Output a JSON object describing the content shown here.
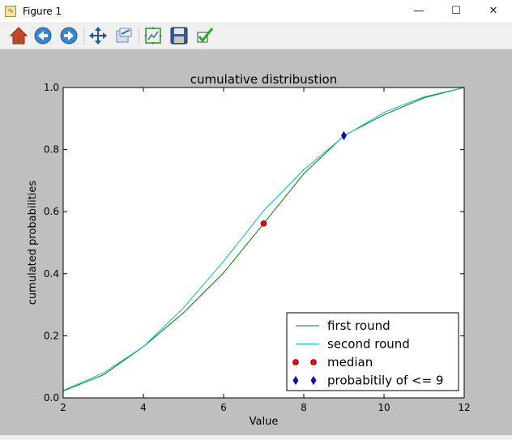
{
  "window": {
    "title": "Figure 1",
    "minimize_glyph": "—",
    "maximize_glyph": "☐",
    "close_glyph": "✕"
  },
  "toolbar": {
    "items": [
      "home-icon",
      "back-arrow-icon",
      "forward-arrow-icon",
      "pan-icon",
      "zoom-icon",
      "subplots-config-icon",
      "save-icon",
      "edit-axes-icon"
    ]
  },
  "colors": {
    "figure_bg": "#bfbfbf",
    "first_round": "#008000",
    "second_round": "#00bfbf",
    "median": "#ff0000",
    "prob9": "#0000ff"
  },
  "chart_data": {
    "type": "line",
    "title": "cumulative distribustion",
    "xlabel": "Value",
    "ylabel": "cumulated probabilities",
    "xlim": [
      2,
      12
    ],
    "ylim": [
      0.0,
      1.0
    ],
    "xticks": [
      "2",
      "4",
      "6",
      "8",
      "10",
      "12"
    ],
    "yticks": [
      "0.0",
      "0.2",
      "0.4",
      "0.6",
      "0.8",
      "1.0"
    ],
    "grid": false,
    "legend_position": "lower-right",
    "series": [
      {
        "name": "first round",
        "kind": "line",
        "color": "#008000",
        "x": [
          2,
          3,
          4,
          5,
          6,
          7,
          8,
          9,
          10,
          11,
          12
        ],
        "y": [
          0.022,
          0.074,
          0.165,
          0.274,
          0.403,
          0.562,
          0.722,
          0.845,
          0.912,
          0.967,
          1.0
        ]
      },
      {
        "name": "second round",
        "kind": "line",
        "color": "#00bfbf",
        "x": [
          2,
          3,
          4,
          5,
          6,
          7,
          8,
          9,
          10,
          11,
          12
        ],
        "y": [
          0.024,
          0.08,
          0.165,
          0.29,
          0.44,
          0.603,
          0.735,
          0.843,
          0.92,
          0.97,
          1.0
        ]
      },
      {
        "name": "median",
        "kind": "point",
        "marker": "circle",
        "color": "#ff0000",
        "x": [
          7
        ],
        "y": [
          0.562
        ]
      },
      {
        "name": "probabitily of <= 9",
        "kind": "point",
        "marker": "diamond",
        "color": "#0000ff",
        "x": [
          9
        ],
        "y": [
          0.845
        ]
      }
    ]
  }
}
